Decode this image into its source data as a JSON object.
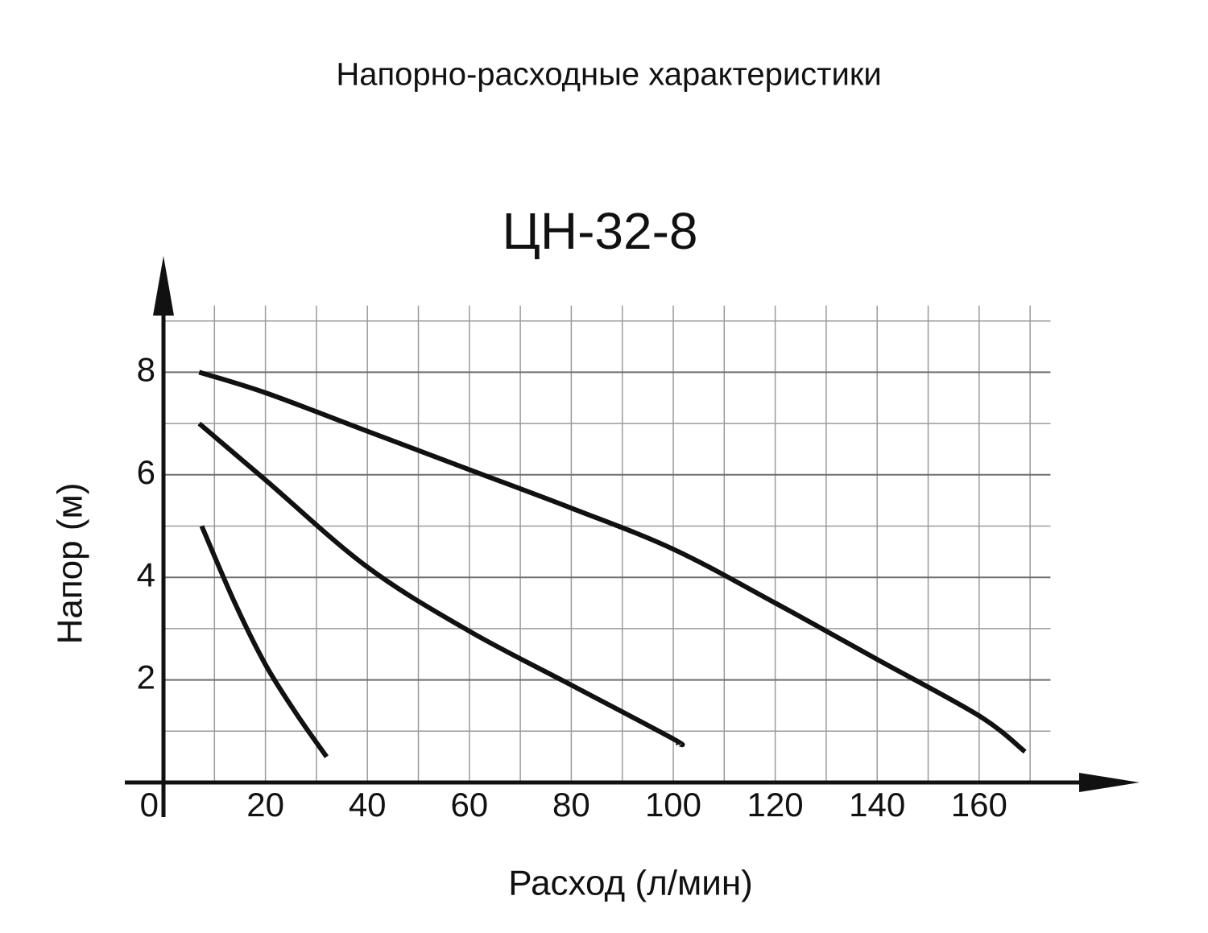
{
  "header": {
    "title": "Напорно-расходные характеристики"
  },
  "chart_data": {
    "type": "line",
    "title": "ЦН-32-8",
    "x_label": "Расход (л/мин)",
    "y_label": "Напор (м)",
    "xlim": [
      0,
      174
    ],
    "ylim": [
      0,
      9.3
    ],
    "xticks": [
      0,
      20,
      40,
      60,
      80,
      100,
      120,
      140,
      160
    ],
    "yticks": [
      2,
      4,
      6,
      8
    ],
    "xgrid": [
      10,
      20,
      30,
      40,
      50,
      60,
      70,
      80,
      90,
      100,
      110,
      120,
      130,
      140,
      150,
      160,
      170
    ],
    "ygrid": [
      1,
      2,
      3,
      4,
      5,
      6,
      7,
      8,
      9
    ],
    "grid": true,
    "series": [
      {
        "color": "#111111",
        "x": [
          7,
          20,
          40,
          60,
          80,
          100,
          120,
          140,
          160,
          169
        ],
        "values": [
          8,
          7.6,
          6.85,
          6.1,
          5.35,
          4.55,
          3.5,
          2.4,
          1.3,
          0.6
        ]
      },
      {
        "color": "#111111",
        "x": [
          7,
          20,
          40,
          60,
          80,
          100,
          101
        ],
        "values": [
          7,
          5.9,
          4.2,
          2.95,
          1.9,
          0.85,
          0.75
        ]
      },
      {
        "color": "#111111",
        "x": [
          7.5,
          14,
          20,
          26,
          32
        ],
        "values": [
          5,
          3.5,
          2.3,
          1.35,
          0.5
        ]
      }
    ]
  }
}
